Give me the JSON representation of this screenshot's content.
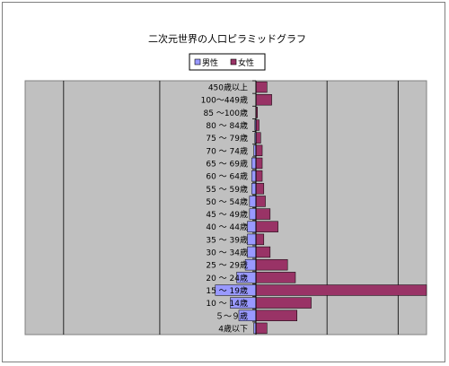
{
  "chart_data": {
    "type": "bar",
    "orientation": "horizontal",
    "title": "二次元世界の人口ピラミッドグラフ",
    "legend": {
      "placement": "top",
      "entries": [
        "男性",
        "女性"
      ]
    },
    "categories": [
      "4歳以下",
      "５～９歳",
      "10 ～ 14歳",
      "15 ～ 19歳",
      "20 ～ 24歳",
      "25 ～ 29歳",
      "30 ～ 34歳",
      "35 ～ 39歳",
      "40 ～ 44歳",
      "45 ～ 49歳",
      "50 ～ 54歳",
      "55 ～ 59歳",
      "60 ～ 64歳",
      "65 ～ 69歳",
      "70 ～ 74歳",
      "75 ～ 79歳",
      "80 ～ 84歳",
      "85 ～100歳",
      "100～449歳",
      "450歳以上"
    ],
    "series": [
      {
        "name": "男性",
        "color": "#9999ff",
        "values": [
          -1,
          -8,
          -12,
          -19,
          -9,
          -5,
          -4,
          -4,
          -4,
          -3,
          -3,
          -2,
          -2,
          -2,
          -1,
          -0.5,
          -0.5,
          0,
          0,
          0
        ]
      },
      {
        "name": "女性",
        "color": "#993366",
        "values": [
          7,
          26,
          35,
          108,
          25,
          20,
          9,
          5,
          14,
          9,
          6,
          5,
          4,
          4,
          4,
          3,
          2,
          1,
          10,
          7
        ]
      }
    ],
    "xlim": [
      -108,
      108
    ],
    "grid": true,
    "plot_background": "#c0c0c0"
  }
}
